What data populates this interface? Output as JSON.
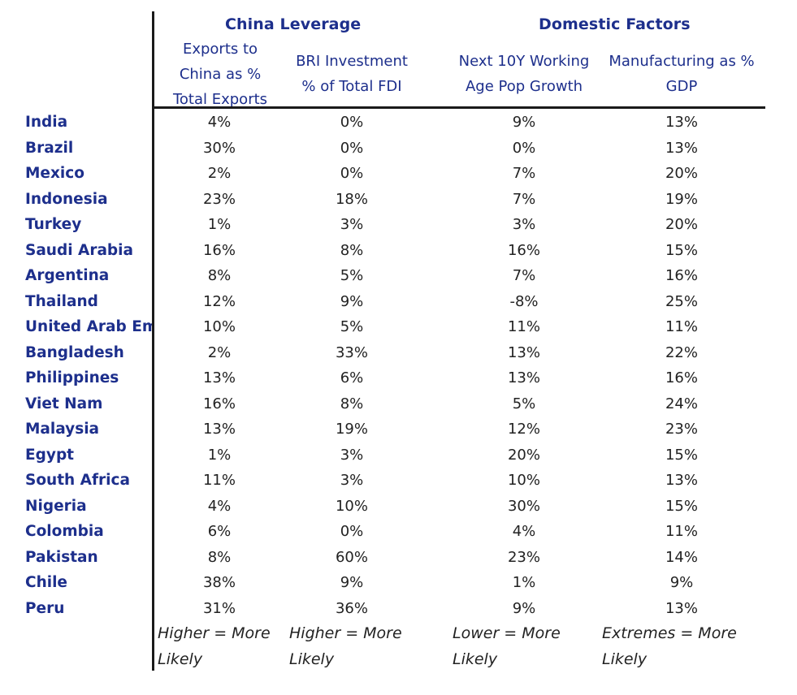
{
  "header": {
    "group_china": "China Leverage",
    "group_domestic": "Domestic Factors",
    "col1_l1": "Exports to",
    "col1_l2": "China as %",
    "col1_l3": "Total Exports",
    "col2_l1": "BRI Investment",
    "col2_l2": "% of Total  FDI",
    "col3_l1": "Next 10Y Working",
    "col3_l2": "Age Pop Growth",
    "col4_l1": "Manufacturing as %",
    "col4_l2": "GDP"
  },
  "rows": [
    {
      "country": "India",
      "exports": "4%",
      "bri": "0%",
      "pop": "9%",
      "mfg": "13%"
    },
    {
      "country": "Brazil",
      "exports": "30%",
      "bri": "0%",
      "pop": "0%",
      "mfg": "13%"
    },
    {
      "country": "Mexico",
      "exports": "2%",
      "bri": "0%",
      "pop": "7%",
      "mfg": "20%"
    },
    {
      "country": "Indonesia",
      "exports": "23%",
      "bri": "18%",
      "pop": "7%",
      "mfg": "19%"
    },
    {
      "country": "Turkey",
      "exports": "1%",
      "bri": "3%",
      "pop": "3%",
      "mfg": "20%"
    },
    {
      "country": "Saudi Arabia",
      "exports": "16%",
      "bri": "8%",
      "pop": "16%",
      "mfg": "15%"
    },
    {
      "country": "Argentina",
      "exports": "8%",
      "bri": "5%",
      "pop": "7%",
      "mfg": "16%"
    },
    {
      "country": "Thailand",
      "exports": "12%",
      "bri": "9%",
      "pop": "-8%",
      "mfg": "25%"
    },
    {
      "country": "United Arab Em",
      "exports": "10%",
      "bri": "5%",
      "pop": "11%",
      "mfg": "11%"
    },
    {
      "country": "Bangladesh",
      "exports": "2%",
      "bri": "33%",
      "pop": "13%",
      "mfg": "22%"
    },
    {
      "country": "Philippines",
      "exports": "13%",
      "bri": "6%",
      "pop": "13%",
      "mfg": "16%"
    },
    {
      "country": "Viet Nam",
      "exports": "16%",
      "bri": "8%",
      "pop": "5%",
      "mfg": "24%"
    },
    {
      "country": "Malaysia",
      "exports": "13%",
      "bri": "19%",
      "pop": "12%",
      "mfg": "23%"
    },
    {
      "country": "Egypt",
      "exports": "1%",
      "bri": "3%",
      "pop": "20%",
      "mfg": "15%"
    },
    {
      "country": "South Africa",
      "exports": "11%",
      "bri": "3%",
      "pop": "10%",
      "mfg": "13%"
    },
    {
      "country": "Nigeria",
      "exports": "4%",
      "bri": "10%",
      "pop": "30%",
      "mfg": "15%"
    },
    {
      "country": "Colombia",
      "exports": "6%",
      "bri": "0%",
      "pop": "4%",
      "mfg": "11%"
    },
    {
      "country": "Pakistan",
      "exports": "8%",
      "bri": "60%",
      "pop": "23%",
      "mfg": "14%"
    },
    {
      "country": "Chile",
      "exports": "38%",
      "bri": "9%",
      "pop": "1%",
      "mfg": "9%"
    },
    {
      "country": "Peru",
      "exports": "31%",
      "bri": "36%",
      "pop": "9%",
      "mfg": "13%"
    }
  ],
  "footer": {
    "col1_l1": "Higher = More",
    "col1_l2": "Likely",
    "col2_l1": "Higher = More",
    "col2_l2": "Likely",
    "col3_l1": "Lower = More",
    "col3_l2": "Likely",
    "col4_l1": "Extremes  = More",
    "col4_l2": "Likely"
  }
}
